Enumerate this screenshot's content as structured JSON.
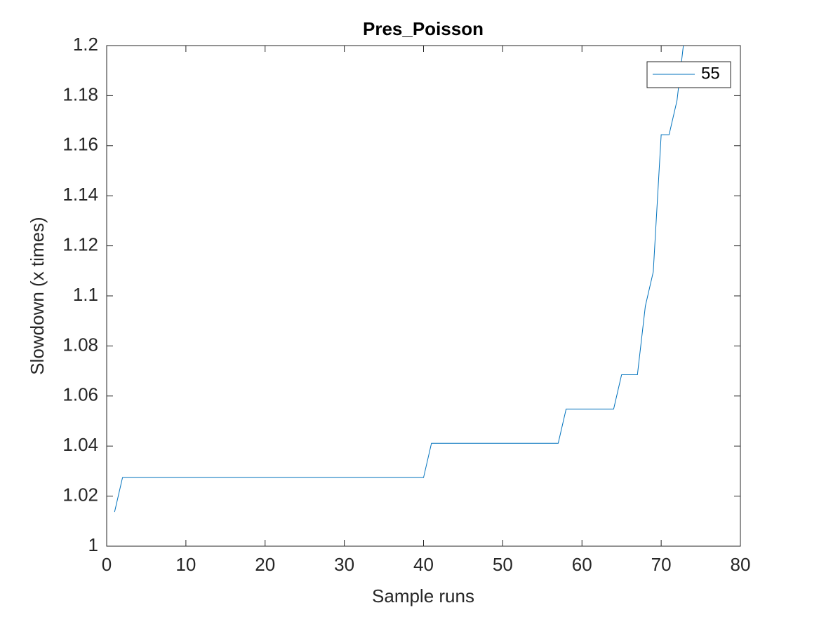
{
  "chart_data": {
    "type": "line",
    "title": "Pres_Poisson",
    "x_label": "Sample runs",
    "y_label": "Slowdown (x times)",
    "x": [
      1,
      2,
      3,
      4,
      5,
      6,
      7,
      8,
      9,
      10,
      11,
      12,
      13,
      14,
      15,
      16,
      17,
      18,
      19,
      20,
      21,
      22,
      23,
      24,
      25,
      26,
      27,
      28,
      29,
      30,
      31,
      32,
      33,
      34,
      35,
      36,
      37,
      38,
      39,
      40,
      41,
      42,
      43,
      44,
      45,
      46,
      47,
      48,
      49,
      50,
      51,
      52,
      53,
      54,
      55,
      56,
      57,
      58,
      59,
      60,
      61,
      62,
      63,
      64,
      65,
      66,
      67,
      68,
      69,
      70,
      71,
      72,
      73
    ],
    "series": [
      {
        "name": "55",
        "color": "#0072bd",
        "values": [
          1.0137,
          1.0274,
          1.0274,
          1.0274,
          1.0274,
          1.0274,
          1.0274,
          1.0274,
          1.0274,
          1.0274,
          1.0274,
          1.0274,
          1.0274,
          1.0274,
          1.0274,
          1.0274,
          1.0274,
          1.0274,
          1.0274,
          1.0274,
          1.0274,
          1.0274,
          1.0274,
          1.0274,
          1.0274,
          1.0274,
          1.0274,
          1.0274,
          1.0274,
          1.0274,
          1.0274,
          1.0274,
          1.0274,
          1.0274,
          1.0274,
          1.0274,
          1.0274,
          1.0274,
          1.0274,
          1.0274,
          1.0411,
          1.0411,
          1.0411,
          1.0411,
          1.0411,
          1.0411,
          1.0411,
          1.0411,
          1.0411,
          1.0411,
          1.0411,
          1.0411,
          1.0411,
          1.0411,
          1.0411,
          1.0411,
          1.0411,
          1.0548,
          1.0548,
          1.0548,
          1.0548,
          1.0548,
          1.0548,
          1.0548,
          1.0685,
          1.0685,
          1.0685,
          1.0959,
          1.1096,
          1.1644,
          1.1644,
          1.1781,
          1.2055
        ]
      }
    ],
    "xlim": [
      0,
      80
    ],
    "xticks": [
      0,
      10,
      20,
      30,
      40,
      50,
      60,
      70,
      80
    ],
    "ylim": [
      1,
      1.2
    ],
    "yticks": [
      1,
      1.02,
      1.04,
      1.06,
      1.08,
      1.1,
      1.12,
      1.14,
      1.16,
      1.18,
      1.2
    ],
    "legend": "upper right",
    "grid": false
  }
}
